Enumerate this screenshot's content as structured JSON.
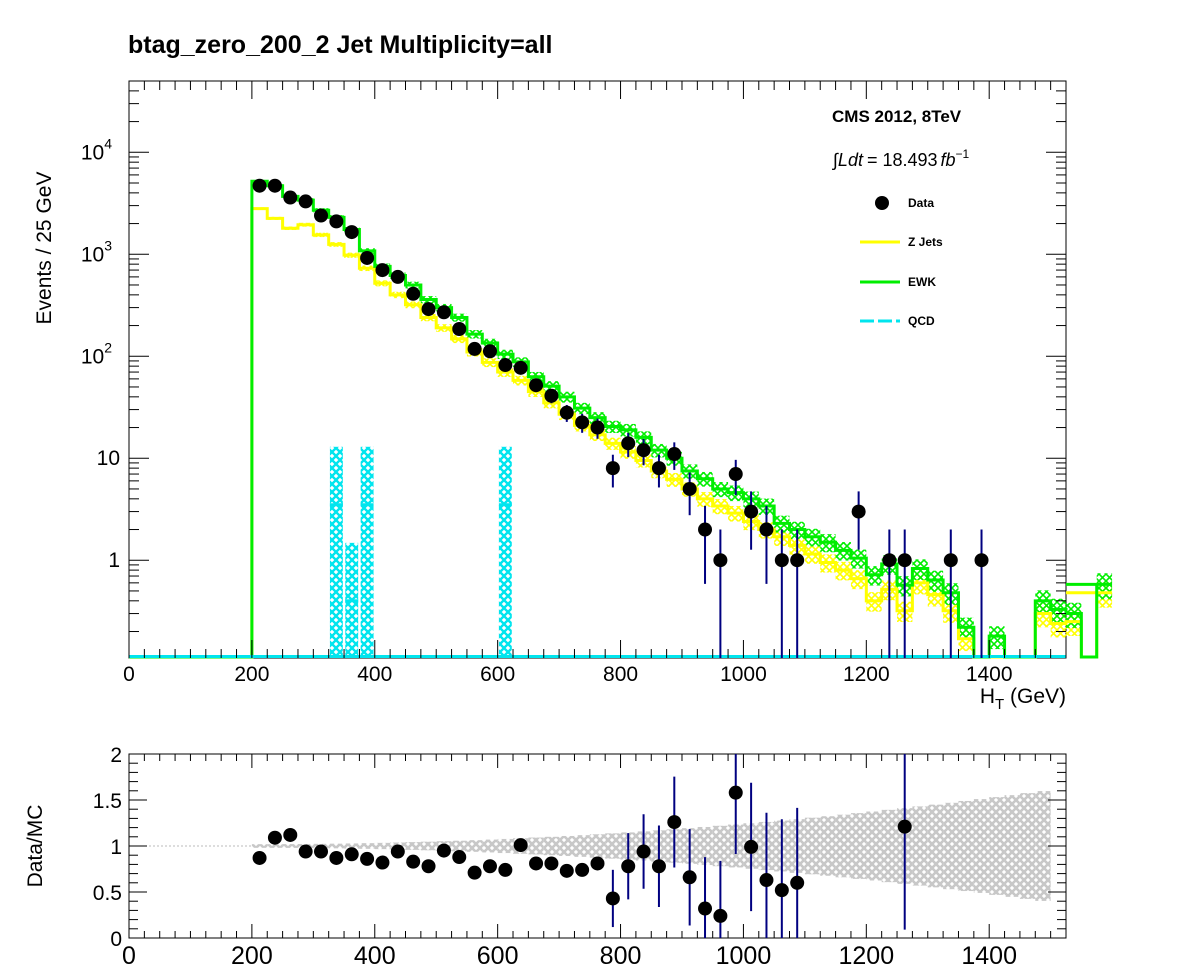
{
  "title": "btag_zero_200_2    Jet Multiplicity=all",
  "annotations": {
    "experiment": "CMS 2012, 8TeV",
    "lumi_prefix": "∫Ldt",
    "lumi_value": "= 18.493",
    "lumi_unit": "fb",
    "lumi_exp": "−1"
  },
  "colors": {
    "zjets": "#ffff00",
    "ewk": "#00ee00",
    "qcd": "#00e5ee",
    "data": "#000000",
    "error_bar": "#000080",
    "ratio_band": "#c8c8c8"
  },
  "chart_data": [
    {
      "type": "line",
      "panel": "main",
      "xlabel": "H_T (GeV)",
      "ylabel": "Events / 25 GeV",
      "xlim": [
        0,
        1525
      ],
      "ylim": [
        0.11,
        50000
      ],
      "log_y": true,
      "x_ticks": [
        "0",
        "200",
        "400",
        "600",
        "800",
        "1000",
        "1200",
        "1400"
      ],
      "y_ticks": [
        "1",
        "10",
        "10^2",
        "10^3",
        "10^4"
      ],
      "grid": false,
      "legend_position": "top-right",
      "bin_width": 25,
      "bin_edges_start": 200,
      "series": [
        {
          "name": "Data",
          "style": "markers",
          "points": [
            [
              212.5,
              4700
            ],
            [
              237.5,
              4700
            ],
            [
              262.5,
              3600
            ],
            [
              287.5,
              3300
            ],
            [
              312.5,
              2400
            ],
            [
              337.5,
              2100
            ],
            [
              362.5,
              1650
            ],
            [
              387.5,
              920
            ],
            [
              412.5,
              700
            ],
            [
              437.5,
              600
            ],
            [
              462.5,
              410
            ],
            [
              487.5,
              290
            ],
            [
              512.5,
              270
            ],
            [
              537.5,
              185
            ],
            [
              562.5,
              118
            ],
            [
              587.5,
              112
            ],
            [
              612.5,
              82
            ],
            [
              637.5,
              77
            ],
            [
              662.5,
              52
            ],
            [
              687.5,
              41
            ],
            [
              712.5,
              28
            ],
            [
              737.5,
              22.5
            ],
            [
              762.5,
              20
            ],
            [
              787.5,
              8
            ],
            [
              812.5,
              14
            ],
            [
              837.5,
              12
            ],
            [
              862.5,
              8
            ],
            [
              887.5,
              11
            ],
            [
              912.5,
              5
            ],
            [
              937.5,
              2
            ],
            [
              962.5,
              1
            ],
            [
              987.5,
              7
            ],
            [
              1012.5,
              3
            ],
            [
              1037.5,
              2
            ],
            [
              1062.5,
              1
            ],
            [
              1087.5,
              1
            ],
            [
              1187.5,
              3
            ],
            [
              1237.5,
              1
            ],
            [
              1262.5,
              1
            ],
            [
              1337.5,
              1
            ],
            [
              1387.5,
              1
            ]
          ]
        },
        {
          "name": "Z Jets",
          "style": "step",
          "values": [
            2800,
            2250,
            1800,
            1950,
            1550,
            1250,
            980,
            730,
            520,
            400,
            320,
            240,
            190,
            148,
            110,
            87,
            70,
            58,
            45,
            35,
            27,
            21,
            17,
            14,
            11.5,
            9.5,
            7.5,
            6.2,
            5,
            4,
            3.4,
            2.9,
            2.4,
            2,
            1.7,
            1.4,
            1.15,
            0.95,
            0.8,
            0.66,
            0.4,
            0.52,
            0.32,
            0.6,
            0.46,
            0.32,
            0.17,
            0.11,
            0.11,
            0.11,
            0.11,
            0.3,
            0.24,
            0.25,
            0.11,
            0.48
          ]
        },
        {
          "name": "EWK",
          "style": "step",
          "values": [
            5200,
            4700,
            3700,
            3400,
            2700,
            2300,
            1750,
            1080,
            760,
            620,
            500,
            360,
            300,
            240,
            165,
            135,
            105,
            88,
            63,
            51,
            40,
            31,
            25,
            20.5,
            19,
            16,
            12,
            10,
            7.5,
            6.3,
            5,
            4.6,
            4,
            3.4,
            2.3,
            2.0,
            1.7,
            1.5,
            1.25,
            1.05,
            0.72,
            0.92,
            0.57,
            0.83,
            0.64,
            0.48,
            0.22,
            0.11,
            0.18,
            0.11,
            0.11,
            0.4,
            0.33,
            0.3,
            0.11,
            0.58
          ]
        },
        {
          "name": "QCD",
          "style": "step",
          "spikes": [
            [
              337.5,
              3.5
            ],
            [
              362.5,
              0.4
            ],
            [
              387.5,
              3.5
            ],
            [
              612.5,
              3.5
            ]
          ]
        }
      ]
    },
    {
      "type": "scatter",
      "panel": "ratio",
      "ylabel": "Data/MC",
      "xlim": [
        0,
        1525
      ],
      "ylim": [
        0,
        2
      ],
      "x_ticks": [
        "0",
        "200",
        "400",
        "600",
        "800",
        "1000",
        "1200",
        "1400"
      ],
      "y_ticks": [
        "0",
        "0.5",
        "1",
        "1.5",
        "2"
      ],
      "reference_line": 1,
      "series": [
        {
          "name": "Data/MC",
          "points": [
            [
              212.5,
              0.87
            ],
            [
              237.5,
              1.09
            ],
            [
              262.5,
              1.12
            ],
            [
              287.5,
              0.94
            ],
            [
              312.5,
              0.94
            ],
            [
              337.5,
              0.87
            ],
            [
              362.5,
              0.91
            ],
            [
              387.5,
              0.86
            ],
            [
              412.5,
              0.82
            ],
            [
              437.5,
              0.94
            ],
            [
              462.5,
              0.83
            ],
            [
              487.5,
              0.78
            ],
            [
              512.5,
              0.95
            ],
            [
              537.5,
              0.88
            ],
            [
              562.5,
              0.71
            ],
            [
              587.5,
              0.78
            ],
            [
              612.5,
              0.74
            ],
            [
              637.5,
              1.01
            ],
            [
              662.5,
              0.81
            ],
            [
              687.5,
              0.81
            ],
            [
              712.5,
              0.73
            ],
            [
              737.5,
              0.74
            ],
            [
              762.5,
              0.81
            ],
            [
              787.5,
              0.43
            ],
            [
              812.5,
              0.78
            ],
            [
              837.5,
              0.94
            ],
            [
              862.5,
              0.78
            ],
            [
              887.5,
              1.26
            ],
            [
              912.5,
              0.66
            ],
            [
              937.5,
              0.32
            ],
            [
              962.5,
              0.24
            ],
            [
              987.5,
              1.58
            ],
            [
              1012.5,
              0.99
            ],
            [
              1037.5,
              0.63
            ],
            [
              1062.5,
              0.52
            ],
            [
              1087.5,
              0.6
            ],
            [
              1262.5,
              1.21
            ]
          ]
        }
      ]
    }
  ]
}
